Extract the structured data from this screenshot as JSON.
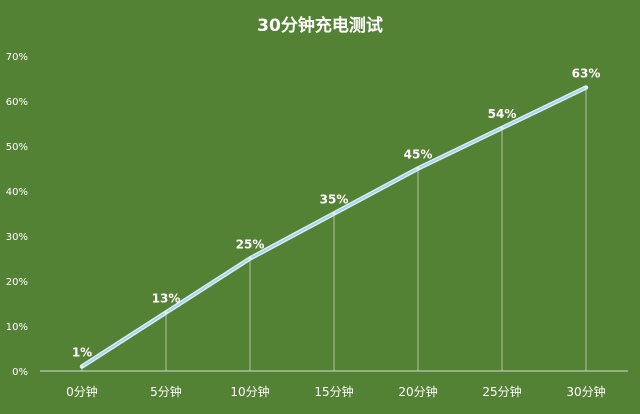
{
  "chart_data": {
    "type": "line",
    "title": "30分钟充电测试",
    "xlabel": "",
    "ylabel": "",
    "categories": [
      "0分钟",
      "5分钟",
      "10分钟",
      "15分钟",
      "20分钟",
      "25分钟",
      "30分钟"
    ],
    "series": [
      {
        "values": [
          1,
          13,
          25,
          35,
          45,
          54,
          63
        ]
      }
    ],
    "data_labels": [
      "1%",
      "13%",
      "25%",
      "35%",
      "45%",
      "54%",
      "63%"
    ],
    "ylim": [
      0,
      70
    ],
    "yticks": [
      "0%",
      "10%",
      "20%",
      "30%",
      "40%",
      "50%",
      "60%",
      "70%"
    ],
    "grid": false,
    "drop_lines": true,
    "legend": "none",
    "colors": {
      "background": "#548235",
      "line": "#9fd3ea",
      "line_glow": "#dbeef7",
      "text": "#ffffff"
    }
  }
}
